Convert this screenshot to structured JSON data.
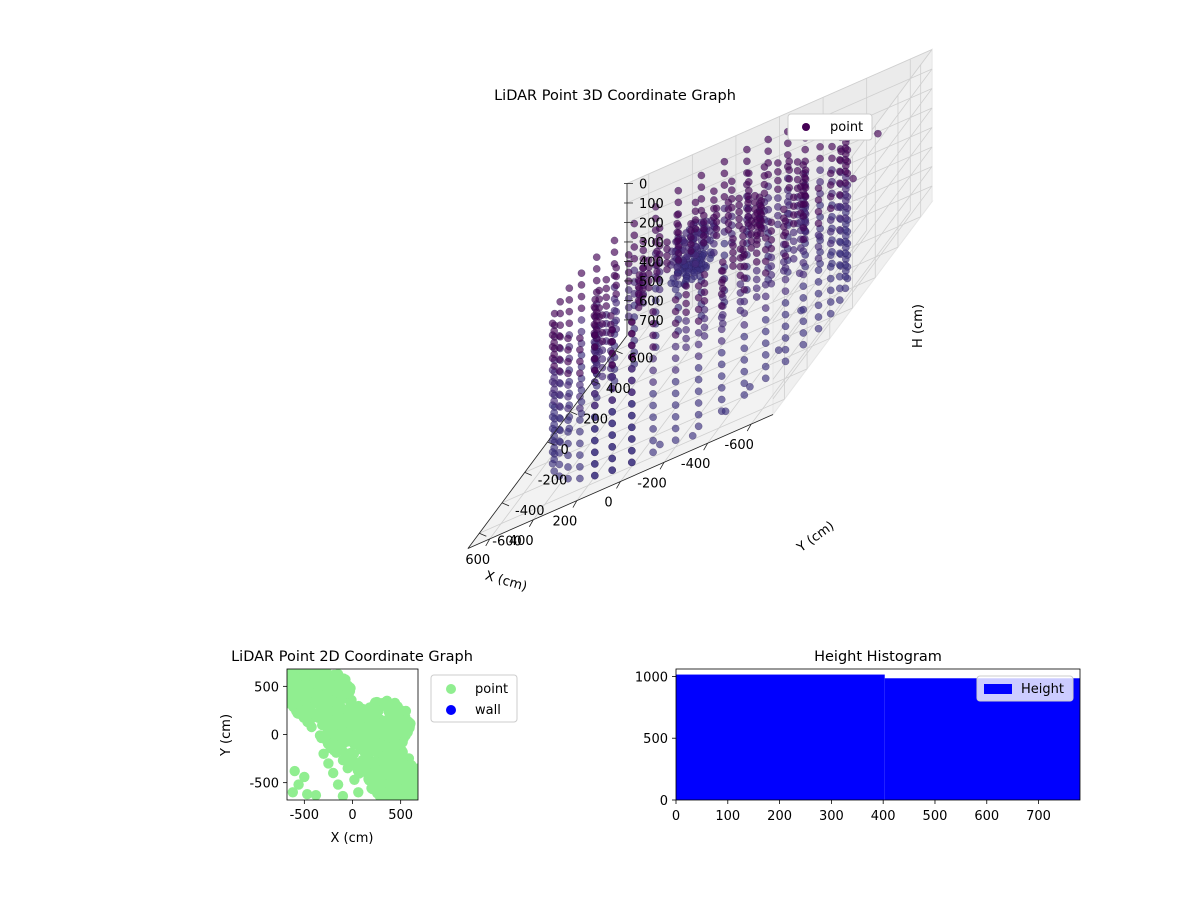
{
  "chart_data": [
    {
      "type": "scatter",
      "projection": "3d",
      "title": "LiDAR Point 3D Coordinate Graph",
      "xlabel": "X (cm)",
      "ylabel": "Y (cm)",
      "zlabel": "H (cm)",
      "xlim": [
        -700,
        700
      ],
      "ylim": [
        -700,
        700
      ],
      "zlim": [
        780,
        0
      ],
      "x_ticks": [
        -600,
        -400,
        -200,
        0,
        200,
        400,
        600
      ],
      "y_ticks": [
        -600,
        -400,
        -200,
        0,
        200,
        400,
        600
      ],
      "z_ticks": [
        0,
        100,
        200,
        300,
        400,
        500,
        600,
        700
      ],
      "z_inverted": true,
      "grid": true,
      "legend_position": "top-right",
      "series": [
        {
          "name": "point",
          "color": "#440154",
          "rings": [
            {
              "radius": 250,
              "h_min": 90,
              "h_max": 240,
              "h_step": 35,
              "a_start": -30,
              "a_end": 210,
              "a_step": 12
            },
            {
              "radius": 430,
              "h_min": 80,
              "h_max": 420,
              "h_step": 45,
              "a_start": -60,
              "a_end": 250,
              "a_step": 10
            },
            {
              "radius": 600,
              "h_min": 40,
              "h_max": 760,
              "h_step": 60,
              "a_start": -90,
              "a_end": 290,
              "a_step": 9
            }
          ],
          "cluster": {
            "x": 320,
            "y": 550,
            "h_min": 300,
            "h_max": 560,
            "spread": 70
          },
          "sparse_points": [
            {
              "x": -640,
              "y": 120,
              "h": 180
            },
            {
              "x": -600,
              "y": 60,
              "h": 260
            },
            {
              "x": -560,
              "y": -20,
              "h": 330
            },
            {
              "x": -520,
              "y": -120,
              "h": 420
            },
            {
              "x": -620,
              "y": -300,
              "h": 520
            },
            {
              "x": -580,
              "y": -420,
              "h": 610
            },
            {
              "x": -500,
              "y": -520,
              "h": 680
            },
            {
              "x": -420,
              "y": -580,
              "h": 720
            },
            {
              "x": -300,
              "y": -640,
              "h": 740
            },
            {
              "x": -160,
              "y": -660,
              "h": 700
            },
            {
              "x": -660,
              "y": 300,
              "h": 100
            },
            {
              "x": -450,
              "y": 380,
              "h": 150
            }
          ]
        }
      ]
    },
    {
      "type": "scatter",
      "title": "LiDAR Point 2D Coordinate Graph",
      "xlabel": "X (cm)",
      "ylabel": "Y (cm)",
      "xlim": [
        -680,
        680
      ],
      "ylim": [
        -680,
        680
      ],
      "x_ticks": [
        -500,
        0,
        500
      ],
      "y_ticks": [
        -500,
        0,
        500
      ],
      "legend_position": "outside-right",
      "series": [
        {
          "name": "point",
          "color": "#90ee90",
          "regions": [
            {
              "type": "band",
              "x_from": -650,
              "y_from": 650,
              "x_to": 650,
              "y_to": -650,
              "width": 520
            },
            {
              "type": "blob",
              "x": -350,
              "y": 480,
              "rx": 330,
              "ry": 190
            },
            {
              "type": "blob",
              "x": 300,
              "y": 100,
              "rx": 320,
              "ry": 260
            },
            {
              "type": "blob",
              "x": 420,
              "y": -450,
              "rx": 220,
              "ry": 220
            }
          ],
          "sparse_points": [
            {
              "x": -600,
              "y": -380
            },
            {
              "x": -500,
              "y": -440
            },
            {
              "x": -470,
              "y": -620
            },
            {
              "x": -380,
              "y": -630
            },
            {
              "x": -250,
              "y": -300
            },
            {
              "x": -200,
              "y": -400
            },
            {
              "x": -150,
              "y": -520
            },
            {
              "x": -50,
              "y": -350
            },
            {
              "x": 20,
              "y": -470
            },
            {
              "x": 120,
              "y": -380
            },
            {
              "x": -620,
              "y": -600
            },
            {
              "x": -300,
              "y": -200
            },
            {
              "x": -100,
              "y": -640
            },
            {
              "x": 60,
              "y": -600
            },
            {
              "x": -560,
              "y": -520
            }
          ]
        },
        {
          "name": "wall",
          "color": "#0000ff",
          "points": []
        }
      ]
    },
    {
      "type": "bar",
      "subtype": "histogram",
      "title": "Height Histogram",
      "xlim": [
        0,
        780
      ],
      "ylim": [
        0,
        1060
      ],
      "x_ticks": [
        0,
        100,
        200,
        300,
        400,
        500,
        600,
        700
      ],
      "y_ticks": [
        0,
        500,
        1000
      ],
      "legend_position": "upper-right",
      "series": [
        {
          "name": "Height",
          "color": "#0000ff",
          "bins": [
            {
              "x0": 0,
              "x1": 403,
              "count": 1015
            },
            {
              "x0": 403,
              "x1": 780,
              "count": 985
            }
          ]
        }
      ]
    }
  ]
}
